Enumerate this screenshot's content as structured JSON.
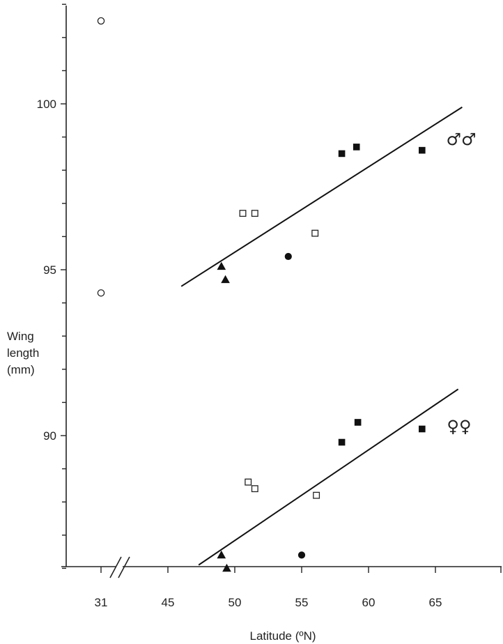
{
  "chart_data": {
    "type": "scatter",
    "xlabel": "Latitude (ºN)",
    "ylabel": "Wing length (mm)",
    "ylabel_lines": [
      "Wing",
      "length",
      "(mm)"
    ],
    "x_ticks": [
      31,
      45,
      50,
      55,
      60,
      65
    ],
    "x_axis_break": "between 31 and 45",
    "y_ticks": [
      86,
      87,
      88,
      89,
      90,
      91,
      92,
      93,
      94,
      95,
      96,
      97,
      98,
      99,
      100,
      101,
      102,
      103
    ],
    "y_tick_labels": [
      90,
      95,
      100
    ],
    "ylim": [
      85,
      103
    ],
    "grid": false,
    "groups": [
      {
        "label": "♂♂",
        "points": [
          {
            "marker": "open-circle",
            "x": 31,
            "y": 102.5
          },
          {
            "marker": "open-circle",
            "x": 31,
            "y": 94.3
          },
          {
            "marker": "filled-triangle",
            "x": 49,
            "y": 95.1
          },
          {
            "marker": "filled-triangle",
            "x": 49.3,
            "y": 94.7
          },
          {
            "marker": "open-square",
            "x": 50.6,
            "y": 96.7
          },
          {
            "marker": "open-square",
            "x": 51.5,
            "y": 96.7
          },
          {
            "marker": "filled-circle",
            "x": 54,
            "y": 95.4
          },
          {
            "marker": "open-square",
            "x": 56,
            "y": 96.1
          },
          {
            "marker": "filled-square",
            "x": 58,
            "y": 98.5
          },
          {
            "marker": "filled-square",
            "x": 59.1,
            "y": 98.7
          },
          {
            "marker": "filled-square",
            "x": 64,
            "y": 98.6
          }
        ],
        "fit_line": {
          "x": [
            46,
            67
          ],
          "y": [
            94.5,
            99.9
          ]
        }
      },
      {
        "label": "♀♀",
        "points": [
          {
            "marker": "filled-triangle",
            "x": 49,
            "y": 86.4
          },
          {
            "marker": "filled-triangle",
            "x": 49.4,
            "y": 86
          },
          {
            "marker": "open-square",
            "x": 51,
            "y": 88.6
          },
          {
            "marker": "open-square",
            "x": 51.5,
            "y": 88.4
          },
          {
            "marker": "filled-circle",
            "x": 55,
            "y": 86.4
          },
          {
            "marker": "open-square",
            "x": 56.1,
            "y": 88.2
          },
          {
            "marker": "filled-square",
            "x": 58,
            "y": 89.8
          },
          {
            "marker": "filled-square",
            "x": 59.2,
            "y": 90.4
          },
          {
            "marker": "filled-square",
            "x": 64,
            "y": 90.2
          }
        ],
        "fit_line": {
          "x": [
            47.3,
            66.7
          ],
          "y": [
            86.1,
            91.4
          ]
        }
      }
    ]
  }
}
